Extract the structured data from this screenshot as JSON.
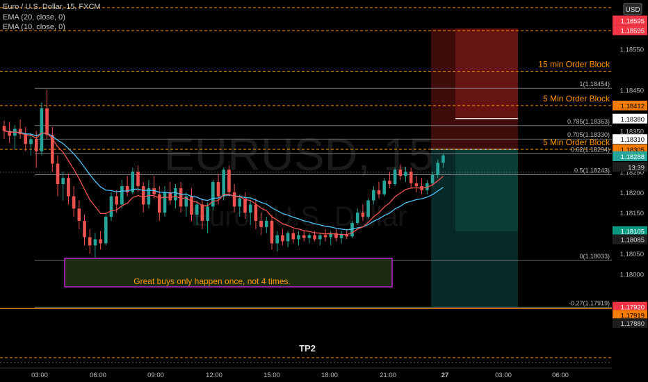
{
  "header": {
    "symbol": "Euro / U.S. Dollar, 15, FXCM",
    "ema20": "EMA (20, close, 0)",
    "ema10": "EMA (10, close, 0)"
  },
  "watermark": {
    "main": "EURUSD, 15",
    "sub": "Euro / U.S. Dollar"
  },
  "currency_badge": "USD",
  "colors": {
    "background": "#000000",
    "candle_up": "#26a69a",
    "candle_down": "#ef5350",
    "ema20": "#4fc3f7",
    "ema10": "#ef5350",
    "order_block_line": "#ff9800",
    "annotation_text": "#ff9800",
    "box_border": "#c026d3",
    "stop_zone": "#8b1a1a",
    "target_zone": "#0d4d48"
  },
  "chart_data": {
    "type": "candlestick",
    "symbol": "EURUSD",
    "timeframe": "15",
    "ylim": [
      1.1777,
      1.1867
    ],
    "y_ticks": [
      1.18,
      1.1805,
      1.181,
      1.1815,
      1.182,
      1.1825,
      1.1835,
      1.1845,
      1.1855
    ],
    "y_tick_labels": [
      "1.18000",
      "1.18050",
      "1.18100",
      "1.18150",
      "1.18200",
      "1.18250",
      "1.18350",
      "1.18450",
      "1.18550"
    ],
    "x_ticks": [
      "03:00",
      "06:00",
      "09:00",
      "12:00",
      "15:00",
      "18:00",
      "21:00",
      "27",
      "03:00",
      "06:00"
    ],
    "candles": [
      [
        1.18362,
        1.18375,
        1.1833,
        1.1835
      ],
      [
        1.1835,
        1.18372,
        1.1832,
        1.18338
      ],
      [
        1.18338,
        1.18365,
        1.18305,
        1.18355
      ],
      [
        1.18355,
        1.18378,
        1.1833,
        1.18342
      ],
      [
        1.18342,
        1.1836,
        1.183,
        1.18318
      ],
      [
        1.18318,
        1.18345,
        1.1829,
        1.1833
      ],
      [
        1.1833,
        1.1835,
        1.1826,
        1.183
      ],
      [
        1.183,
        1.1842,
        1.1829,
        1.18405
      ],
      [
        1.18405,
        1.1845,
        1.1833,
        1.1834
      ],
      [
        1.1834,
        1.1836,
        1.1825,
        1.1827
      ],
      [
        1.1827,
        1.1829,
        1.1819,
        1.1822
      ],
      [
        1.1822,
        1.1825,
        1.1818,
        1.18235
      ],
      [
        1.18235,
        1.18245,
        1.1817,
        1.1819
      ],
      [
        1.1819,
        1.18215,
        1.1814,
        1.1816
      ],
      [
        1.1816,
        1.1818,
        1.1811,
        1.1813
      ],
      [
        1.1813,
        1.18145,
        1.1807,
        1.1809
      ],
      [
        1.1809,
        1.1811,
        1.1805,
        1.1807
      ],
      [
        1.1807,
        1.181,
        1.1804,
        1.18085
      ],
      [
        1.18085,
        1.18105,
        1.1806,
        1.18075
      ],
      [
        1.18075,
        1.1815,
        1.1807,
        1.1814
      ],
      [
        1.1814,
        1.182,
        1.1813,
        1.1819
      ],
      [
        1.1819,
        1.18205,
        1.1815,
        1.1817
      ],
      [
        1.1817,
        1.1823,
        1.1816,
        1.18215
      ],
      [
        1.18215,
        1.1824,
        1.1819,
        1.182
      ],
      [
        1.182,
        1.1826,
        1.18195,
        1.1825
      ],
      [
        1.1825,
        1.18265,
        1.182,
        1.18215
      ],
      [
        1.18215,
        1.18225,
        1.1815,
        1.1817
      ],
      [
        1.1817,
        1.1823,
        1.1816,
        1.1821
      ],
      [
        1.1821,
        1.1824,
        1.18185,
        1.18195
      ],
      [
        1.18195,
        1.18215,
        1.1813,
        1.1815
      ],
      [
        1.1815,
        1.18215,
        1.1814,
        1.182
      ],
      [
        1.182,
        1.18225,
        1.1817,
        1.1818
      ],
      [
        1.1818,
        1.1822,
        1.1816,
        1.1821
      ],
      [
        1.1821,
        1.18225,
        1.1815,
        1.18165
      ],
      [
        1.18165,
        1.182,
        1.1814,
        1.1819
      ],
      [
        1.1819,
        1.1821,
        1.1813,
        1.18145
      ],
      [
        1.18145,
        1.1818,
        1.1812,
        1.1817
      ],
      [
        1.1817,
        1.18185,
        1.1811,
        1.1813
      ],
      [
        1.1813,
        1.18175,
        1.181,
        1.18165
      ],
      [
        1.18165,
        1.1823,
        1.18155,
        1.18225
      ],
      [
        1.18225,
        1.18245,
        1.1817,
        1.1819
      ],
      [
        1.1819,
        1.1826,
        1.1818,
        1.18255
      ],
      [
        1.18255,
        1.18265,
        1.1819,
        1.182
      ],
      [
        1.182,
        1.1822,
        1.1815,
        1.18165
      ],
      [
        1.18165,
        1.18195,
        1.1814,
        1.18185
      ],
      [
        1.18185,
        1.182,
        1.18135,
        1.1815
      ],
      [
        1.1815,
        1.1818,
        1.1812,
        1.1817
      ],
      [
        1.1817,
        1.18185,
        1.1811,
        1.1813
      ],
      [
        1.1813,
        1.1815,
        1.18095,
        1.18115
      ],
      [
        1.18115,
        1.1814,
        1.181,
        1.1813
      ],
      [
        1.1813,
        1.18145,
        1.1806,
        1.18075
      ],
      [
        1.18075,
        1.18105,
        1.18055,
        1.18095
      ],
      [
        1.18095,
        1.1811,
        1.1807,
        1.1808
      ],
      [
        1.1808,
        1.18105,
        1.18065,
        1.181
      ],
      [
        1.181,
        1.1811,
        1.18075,
        1.18085
      ],
      [
        1.18085,
        1.18105,
        1.1807,
        1.18095
      ],
      [
        1.18095,
        1.18105,
        1.1808,
        1.18088
      ],
      [
        1.18088,
        1.181,
        1.18075,
        1.18095
      ],
      [
        1.18095,
        1.18105,
        1.1808,
        1.18085
      ],
      [
        1.18085,
        1.181,
        1.1807,
        1.18095
      ],
      [
        1.18095,
        1.1811,
        1.1808,
        1.1809
      ],
      [
        1.1809,
        1.18105,
        1.1807,
        1.181
      ],
      [
        1.181,
        1.1811,
        1.1808,
        1.18088
      ],
      [
        1.18088,
        1.18105,
        1.18075,
        1.18098
      ],
      [
        1.18098,
        1.1811,
        1.18085,
        1.18092
      ],
      [
        1.18092,
        1.1813,
        1.18088,
        1.18125
      ],
      [
        1.18125,
        1.1816,
        1.1812,
        1.1815
      ],
      [
        1.1815,
        1.1817,
        1.1813,
        1.1814
      ],
      [
        1.1814,
        1.18185,
        1.18135,
        1.1818
      ],
      [
        1.1818,
        1.18215,
        1.1817,
        1.18205
      ],
      [
        1.18205,
        1.18225,
        1.18185,
        1.18195
      ],
      [
        1.18195,
        1.18235,
        1.1819,
        1.18228
      ],
      [
        1.18228,
        1.1825,
        1.1821,
        1.1822
      ],
      [
        1.1822,
        1.1826,
        1.18215,
        1.18255
      ],
      [
        1.18255,
        1.18268,
        1.1823,
        1.1824
      ],
      [
        1.1824,
        1.18262,
        1.18225,
        1.1825
      ],
      [
        1.1825,
        1.1826,
        1.1821,
        1.18222
      ],
      [
        1.18222,
        1.1824,
        1.182,
        1.18215
      ],
      [
        1.18215,
        1.18235,
        1.18195,
        1.18205
      ],
      [
        1.18205,
        1.1823,
        1.18195,
        1.18222
      ],
      [
        1.18222,
        1.1825,
        1.18215,
        1.18242
      ],
      [
        1.18242,
        1.1828,
        1.18235,
        1.18272
      ],
      [
        1.18272,
        1.18295,
        1.1826,
        1.1829
      ]
    ],
    "ema20_values": [
      1.1835,
      1.18348,
      1.18347,
      1.18346,
      1.18343,
      1.18342,
      1.18338,
      1.18344,
      1.18344,
      1.18337,
      1.18327,
      1.18319,
      1.18307,
      1.18294,
      1.18279,
      1.18261,
      1.18243,
      1.18227,
      1.18213,
      1.18205,
      1.18204,
      1.18201,
      1.18203,
      1.18203,
      1.18207,
      1.18208,
      1.18204,
      1.18205,
      1.18204,
      1.182,
      1.182,
      1.18198,
      1.18199,
      1.18195,
      1.18195,
      1.1819,
      1.18188,
      1.18182,
      1.1818,
      1.18185,
      1.18186,
      1.18192,
      1.18193,
      1.18191,
      1.1819,
      1.18187,
      1.18186,
      1.18181,
      1.18175,
      1.18171,
      1.18162,
      1.18155,
      1.18148,
      1.18144,
      1.18139,
      1.18135,
      1.1813,
      1.18127,
      1.18123,
      1.1812,
      1.18117,
      1.18115,
      1.18112,
      1.1811,
      1.18108,
      1.1811,
      1.18113,
      1.18115,
      1.18121,
      1.18129,
      1.18135,
      1.18143,
      1.18149,
      1.18159,
      1.18166,
      1.18174,
      1.18178,
      1.18182,
      1.18184,
      1.18188,
      1.18194,
      1.18203,
      1.18212
    ],
    "ema10_values": [
      1.1835,
      1.18347,
      1.18347,
      1.18345,
      1.1834,
      1.18339,
      1.18332,
      1.18345,
      1.18344,
      1.18331,
      1.18311,
      1.18298,
      1.18277,
      1.18256,
      1.18233,
      1.18207,
      1.18182,
      1.18165,
      1.18148,
      1.18148,
      1.18155,
      1.18157,
      1.18167,
      1.18173,
      1.18187,
      1.18192,
      1.18188,
      1.18192,
      1.18192,
      1.18185,
      1.18188,
      1.18187,
      1.1819,
      1.18185,
      1.18186,
      1.18178,
      1.18176,
      1.18167,
      1.18167,
      1.18178,
      1.1818,
      1.18194,
      1.18195,
      1.1819,
      1.18189,
      1.18182,
      1.1818,
      1.18171,
      1.18161,
      1.18155,
      1.1814,
      1.18132,
      1.18123,
      1.18119,
      1.18113,
      1.1811,
      1.18106,
      1.18104,
      1.18101,
      1.181,
      1.18098,
      1.18099,
      1.18097,
      1.18097,
      1.18096,
      1.18101,
      1.1811,
      1.18115,
      1.18126,
      1.1814,
      1.1815,
      1.18164,
      1.18174,
      1.18189,
      1.18198,
      1.18207,
      1.1821,
      1.18211,
      1.1821,
      1.18212,
      1.18218,
      1.18228,
      1.18239
    ]
  },
  "order_blocks": [
    {
      "label": "15 min Order Block",
      "price": 1.18496,
      "price_label": "1.18496"
    },
    {
      "label": "5 Min Order Block",
      "price": 1.18412,
      "price_label": "1.18412"
    },
    {
      "label": "5 Min Order Block",
      "price": 1.18305,
      "price_label": "1.18305"
    }
  ],
  "top_lines": [
    {
      "price": 1.18595,
      "price_label": "1.18595"
    }
  ],
  "fib_levels": [
    {
      "label": "1(1.18454)",
      "price": 1.18454
    },
    {
      "label": "0.785(1.18363)",
      "price": 1.18363
    },
    {
      "label": "0.705(1.18330)",
      "price": 1.1833
    },
    {
      "label": "0.62(1.18294)",
      "price": 1.18294
    },
    {
      "label": "0.5(1.18243)",
      "price": 1.18243
    },
    {
      "label": "0(1.18033)",
      "price": 1.18033
    },
    {
      "label": "-0.27(1.17919)",
      "price": 1.17919
    }
  ],
  "price_badges": [
    {
      "text": "1.18595",
      "price": 1.18596,
      "kind": "red"
    },
    {
      "text": "1.18595",
      "price": 1.1862,
      "kind": "red"
    },
    {
      "text": "1.18412",
      "price": 1.18412,
      "kind": "orange"
    },
    {
      "text": "1.18380",
      "price": 1.1838,
      "kind": "white"
    },
    {
      "text": "1.18310",
      "price": 1.1833,
      "kind": "white"
    },
    {
      "text": "1.18305",
      "price": 1.18305,
      "kind": "orange"
    },
    {
      "text": "1.18288",
      "price": 1.18288,
      "kind": "green"
    },
    {
      "text": "13:39",
      "price": 1.18262,
      "kind": "dark"
    },
    {
      "text": "1.18105",
      "price": 1.18105,
      "kind": "teal"
    },
    {
      "text": "1.18085",
      "price": 1.18085,
      "kind": "dark"
    },
    {
      "text": "1.17920",
      "price": 1.1792,
      "kind": "red"
    },
    {
      "text": "1.17919",
      "price": 1.179,
      "kind": "orange"
    },
    {
      "text": "1.17880",
      "price": 1.1788,
      "kind": "dark"
    }
  ],
  "annotation": {
    "text": "Great buys only happen once, not 4 times."
  },
  "tp_label": "TP2",
  "trade": {
    "stop_top": 1.186,
    "entry": 1.18305,
    "stop_inner": 1.1838,
    "target": 1.17919,
    "target_inner": 1.18105
  }
}
